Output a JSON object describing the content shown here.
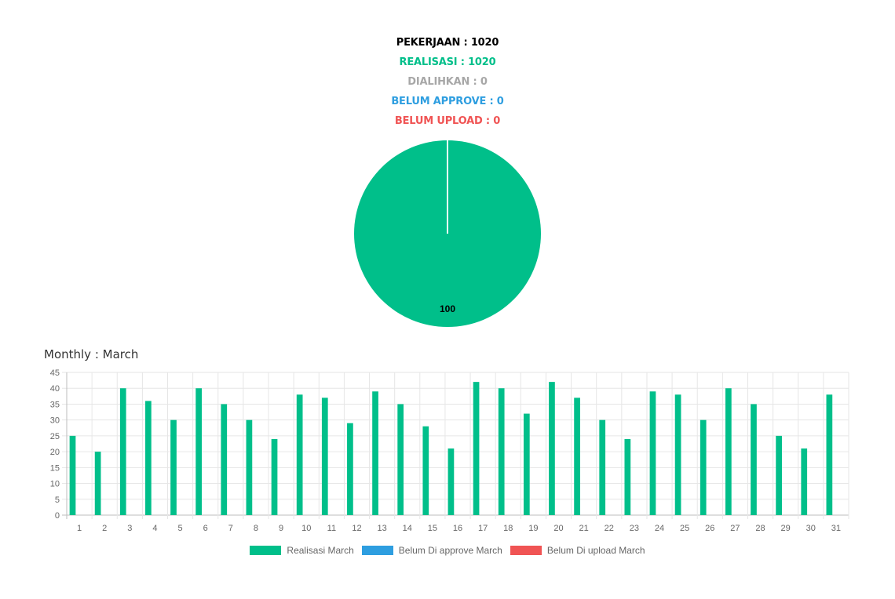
{
  "stats": {
    "pekerjaan": "PEKERJAAN : 1020",
    "realisasi": "REALISASI : 1020",
    "dialihkan": "DIALIHKAN : 0",
    "belum_approve": "BELUM APPROVE : 0",
    "belum_upload": "BELUM UPLOAD : 0"
  },
  "monthly_title": "Monthly : March",
  "colors": {
    "realisasi": "#00bf8a",
    "dialihkan": "#a7a7a7",
    "belum_approve": "#2e9ee0",
    "belum_upload": "#f05454",
    "grid": "#e6e6e6",
    "axis_text": "#666666"
  },
  "chart_data": [
    {
      "type": "pie",
      "slices": [
        {
          "label": "REALISASI",
          "value": 100,
          "color": "#00bf8a"
        }
      ],
      "data_labels": [
        "100"
      ]
    },
    {
      "type": "bar",
      "categories": [
        "1",
        "2",
        "3",
        "4",
        "5",
        "6",
        "7",
        "8",
        "9",
        "10",
        "11",
        "12",
        "13",
        "14",
        "15",
        "16",
        "17",
        "18",
        "19",
        "20",
        "21",
        "22",
        "23",
        "24",
        "25",
        "26",
        "27",
        "28",
        "29",
        "30",
        "31"
      ],
      "series": [
        {
          "name": "Realisasi March",
          "color": "#00bf8a",
          "values": [
            25,
            20,
            40,
            36,
            30,
            40,
            35,
            30,
            24,
            38,
            37,
            29,
            39,
            35,
            28,
            21,
            42,
            40,
            32,
            42,
            37,
            30,
            24,
            39,
            38,
            30,
            40,
            35,
            25,
            21,
            38
          ]
        },
        {
          "name": "Belum Di approve March",
          "color": "#2e9ee0",
          "values": [
            0,
            0,
            0,
            0,
            0,
            0,
            0,
            0,
            0,
            0,
            0,
            0,
            0,
            0,
            0,
            0,
            0,
            0,
            0,
            0,
            0,
            0,
            0,
            0,
            0,
            0,
            0,
            0,
            0,
            0,
            0
          ]
        },
        {
          "name": "Belum Di upload March",
          "color": "#f05454",
          "values": [
            0,
            0,
            0,
            0,
            0,
            0,
            0,
            0,
            0,
            0,
            0,
            0,
            0,
            0,
            0,
            0,
            0,
            0,
            0,
            0,
            0,
            0,
            0,
            0,
            0,
            0,
            0,
            0,
            0,
            0,
            0
          ]
        }
      ],
      "ylim": [
        0,
        45
      ],
      "yticks": [
        0,
        5,
        10,
        15,
        20,
        25,
        30,
        35,
        40,
        45
      ],
      "grid": true,
      "legend_position": "bottom"
    }
  ]
}
